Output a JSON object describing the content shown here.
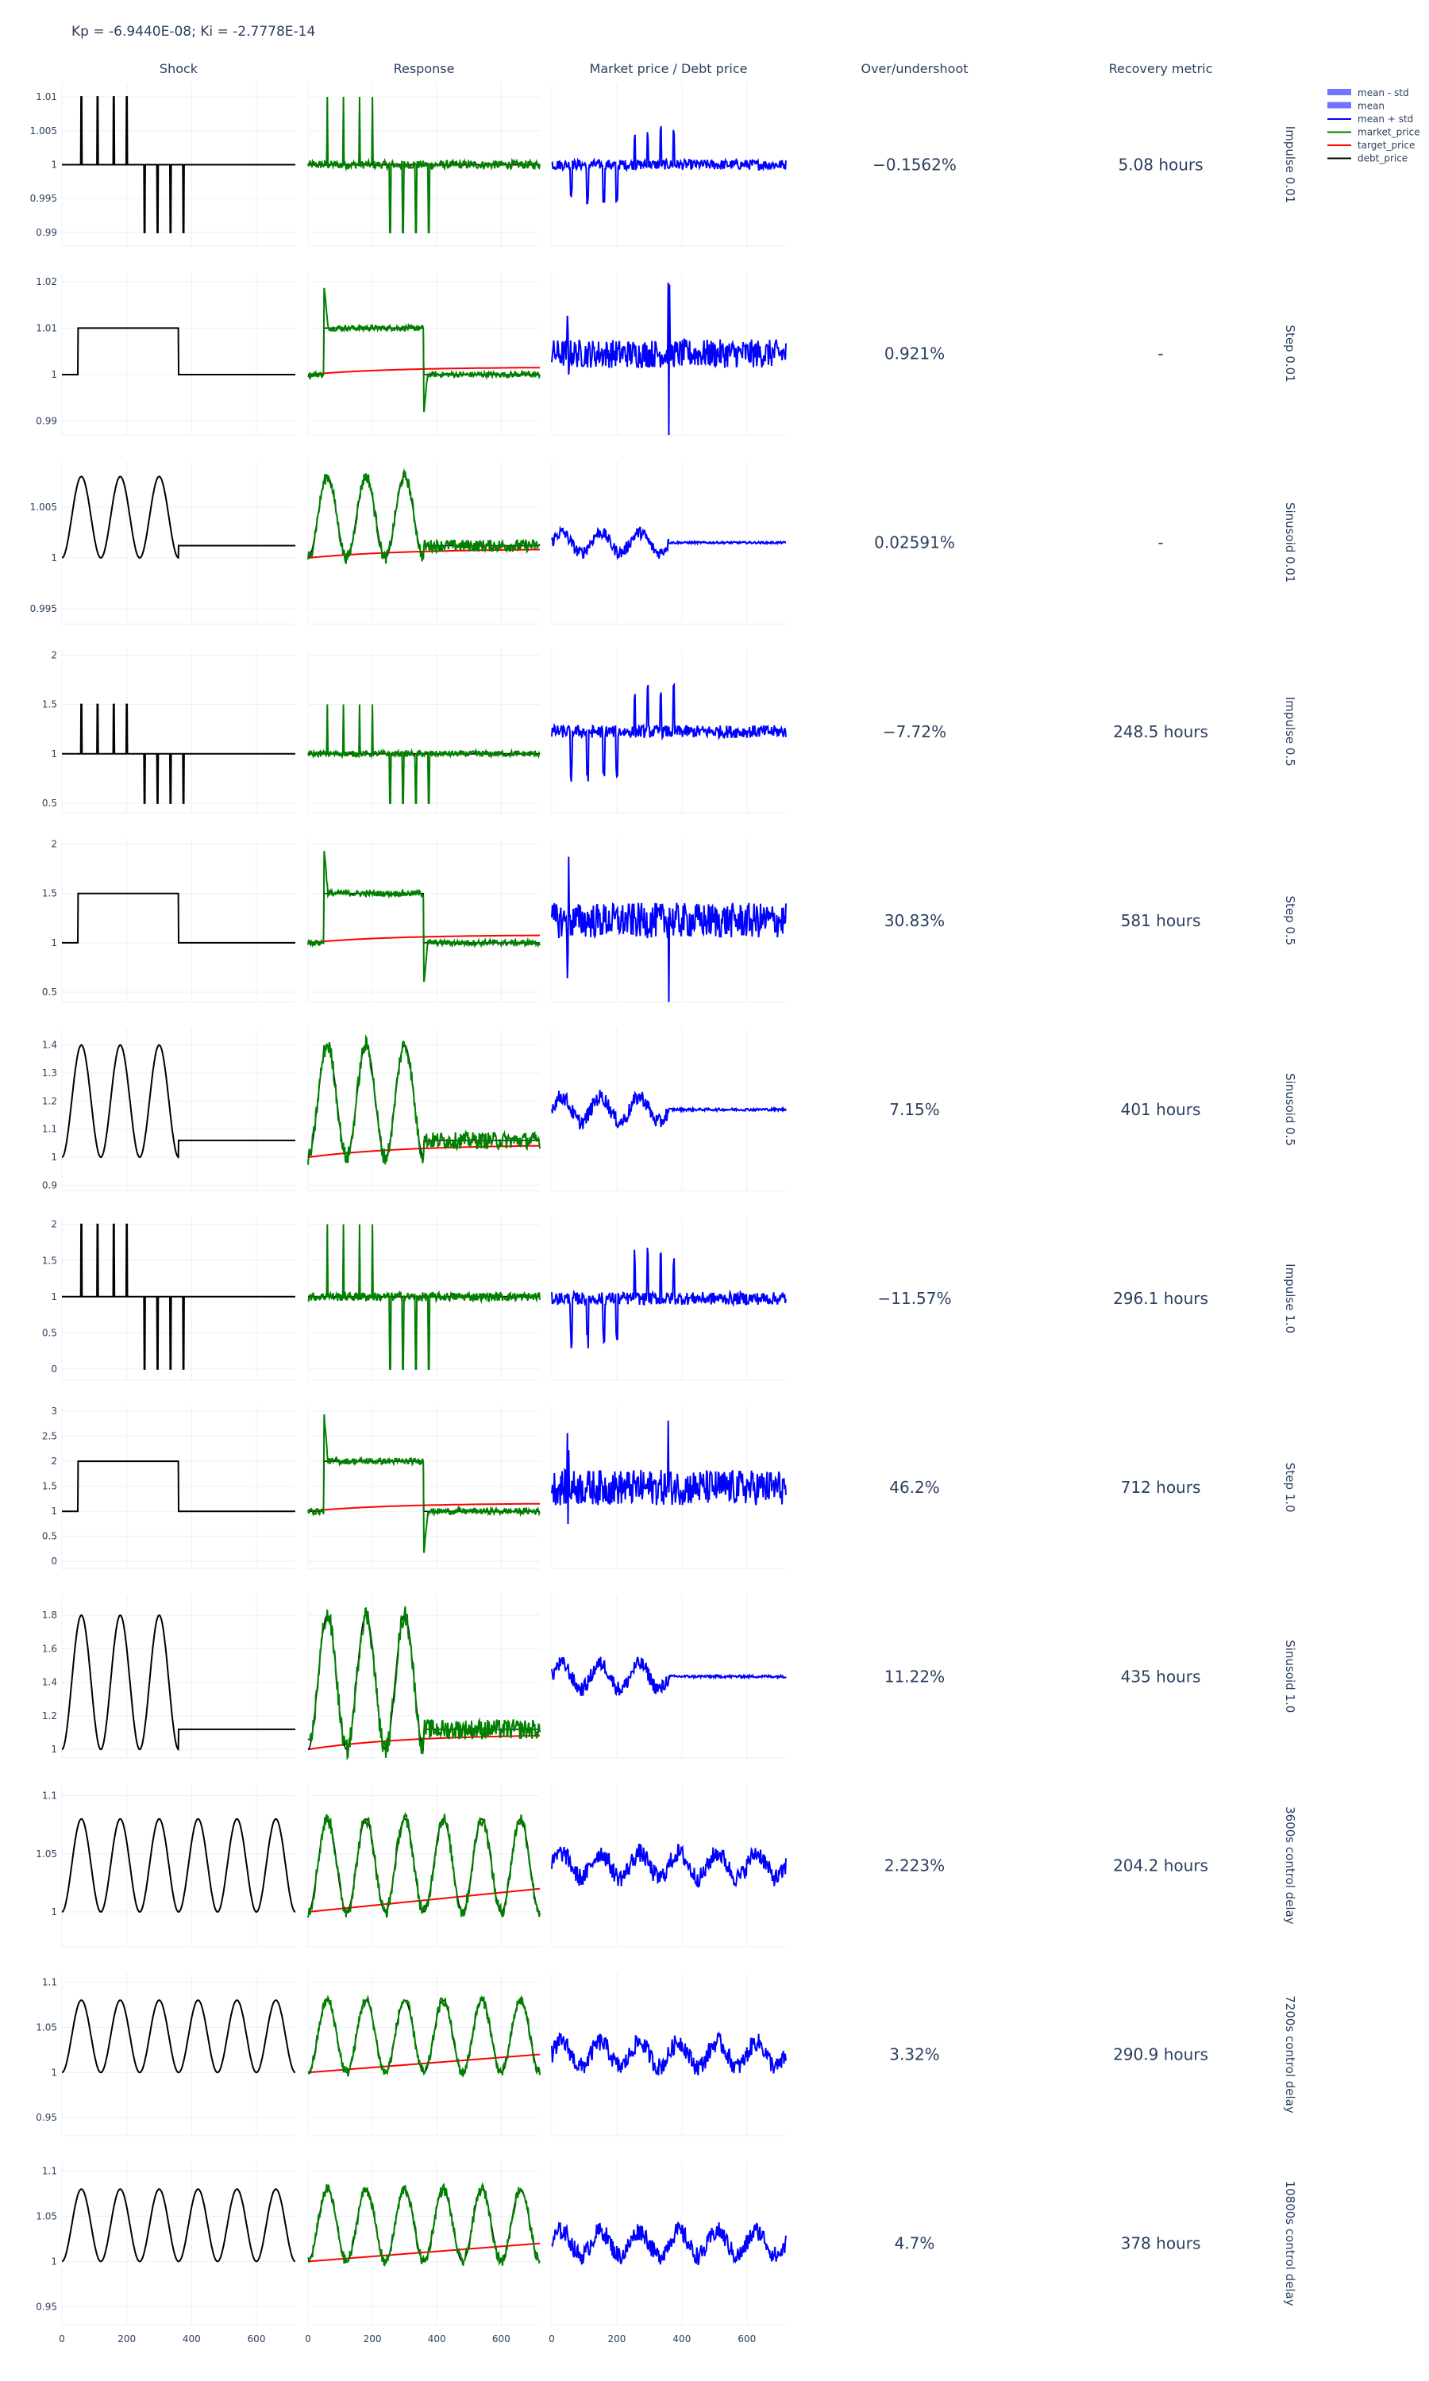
{
  "title": "Kp = -6.9440E-08; Ki = -2.7778E-14",
  "columns": [
    "Shock",
    "Response",
    "Market price / Debt price",
    "Over/undershoot",
    "Recovery metric"
  ],
  "legend": {
    "placement": "top-right",
    "items": [
      {
        "name": "mean - std",
        "color": "#5050ff",
        "kind": "band"
      },
      {
        "name": "mean",
        "color": "#5050ff",
        "kind": "band"
      },
      {
        "name": "mean + std",
        "color": "#0000ff",
        "kind": "line"
      },
      {
        "name": "market_price",
        "color": "#008000",
        "kind": "line"
      },
      {
        "name": "target_price",
        "color": "#ff0000",
        "kind": "line"
      },
      {
        "name": "debt_price",
        "color": "#000000",
        "kind": "line"
      }
    ]
  },
  "colors": {
    "shock": "#000000",
    "market": "#008000",
    "target": "#ff0000",
    "band": "#0000ff"
  },
  "chart_data": {
    "type": "line",
    "x_range": [
      0,
      720
    ],
    "x_ticks": [
      "0",
      "200",
      "400",
      "600"
    ],
    "grid": true,
    "rows": [
      {
        "label": "Impulse 0.01",
        "shock_type": "impulse",
        "amplitude": 0.01,
        "y_range": [
          0.988,
          1.012
        ],
        "y_ticks": [
          "0.99",
          "0.995",
          "1",
          "1.005",
          "1.01"
        ],
        "overshoot": "−0.1562%",
        "recovery": "5.08 hours"
      },
      {
        "label": "Step 0.01",
        "shock_type": "step",
        "amplitude": 0.01,
        "y_range": [
          0.987,
          1.022
        ],
        "y_ticks": [
          "0.99",
          "1",
          "1.01",
          "1.02"
        ],
        "overshoot": "0.921%",
        "recovery": "-"
      },
      {
        "label": "Sinusoid 0.01",
        "shock_type": "sinusoid",
        "amplitude": 0.01,
        "y_range": [
          0.9935,
          1.0095
        ],
        "y_ticks": [
          "0.995",
          "1",
          "1.005"
        ],
        "overshoot": "0.02591%",
        "recovery": "-"
      },
      {
        "label": "Impulse 0.5",
        "shock_type": "impulse",
        "amplitude": 0.5,
        "y_range": [
          0.4,
          2.05
        ],
        "y_ticks": [
          "0.5",
          "1",
          "1.5",
          "2"
        ],
        "overshoot": "−7.72%",
        "recovery": "248.5 hours"
      },
      {
        "label": "Step 0.5",
        "shock_type": "step",
        "amplitude": 0.5,
        "y_range": [
          0.4,
          2.05
        ],
        "y_ticks": [
          "0.5",
          "1",
          "1.5",
          "2"
        ],
        "overshoot": "30.83%",
        "recovery": "581 hours"
      },
      {
        "label": "Sinusoid 0.5",
        "shock_type": "sinusoid",
        "amplitude": 0.5,
        "y_range": [
          0.88,
          1.46
        ],
        "y_ticks": [
          "0.9",
          "1",
          "1.1",
          "1.2",
          "1.3",
          "1.4"
        ],
        "overshoot": "7.15%",
        "recovery": "401 hours"
      },
      {
        "label": "Impulse 1.0",
        "shock_type": "impulse",
        "amplitude": 1.0,
        "y_range": [
          -0.15,
          2.1
        ],
        "y_ticks": [
          "0",
          "0.5",
          "1",
          "1.5",
          "2"
        ],
        "overshoot": "−11.57%",
        "recovery": "296.1 hours"
      },
      {
        "label": "Step 1.0",
        "shock_type": "step",
        "amplitude": 1.0,
        "y_range": [
          -0.15,
          3.1
        ],
        "y_ticks": [
          "0",
          "0.5",
          "1",
          "1.5",
          "2",
          "2.5",
          "3"
        ],
        "overshoot": "46.2%",
        "recovery": "712 hours"
      },
      {
        "label": "Sinusoid 1.0",
        "shock_type": "sinusoid",
        "amplitude": 1.0,
        "y_range": [
          0.95,
          1.92
        ],
        "y_ticks": [
          "1",
          "1.2",
          "1.4",
          "1.6",
          "1.8"
        ],
        "overshoot": "11.22%",
        "recovery": "435 hours"
      },
      {
        "label": "3600s control delay",
        "shock_type": "delay",
        "amplitude": 0.08,
        "y_range": [
          0.97,
          1.11
        ],
        "y_ticks": [
          "1",
          "1.05",
          "1.1"
        ],
        "overshoot": "2.223%",
        "recovery": "204.2 hours"
      },
      {
        "label": "7200s control delay",
        "shock_type": "delay",
        "amplitude": 0.08,
        "y_range": [
          0.93,
          1.11
        ],
        "y_ticks": [
          "0.95",
          "1",
          "1.05",
          "1.1"
        ],
        "overshoot": "3.32%",
        "recovery": "290.9 hours"
      },
      {
        "label": "10800s control delay",
        "shock_type": "delay",
        "amplitude": 0.08,
        "y_range": [
          0.93,
          1.11
        ],
        "y_ticks": [
          "0.95",
          "1",
          "1.05",
          "1.1"
        ],
        "overshoot": "4.7%",
        "recovery": "378 hours"
      }
    ]
  }
}
